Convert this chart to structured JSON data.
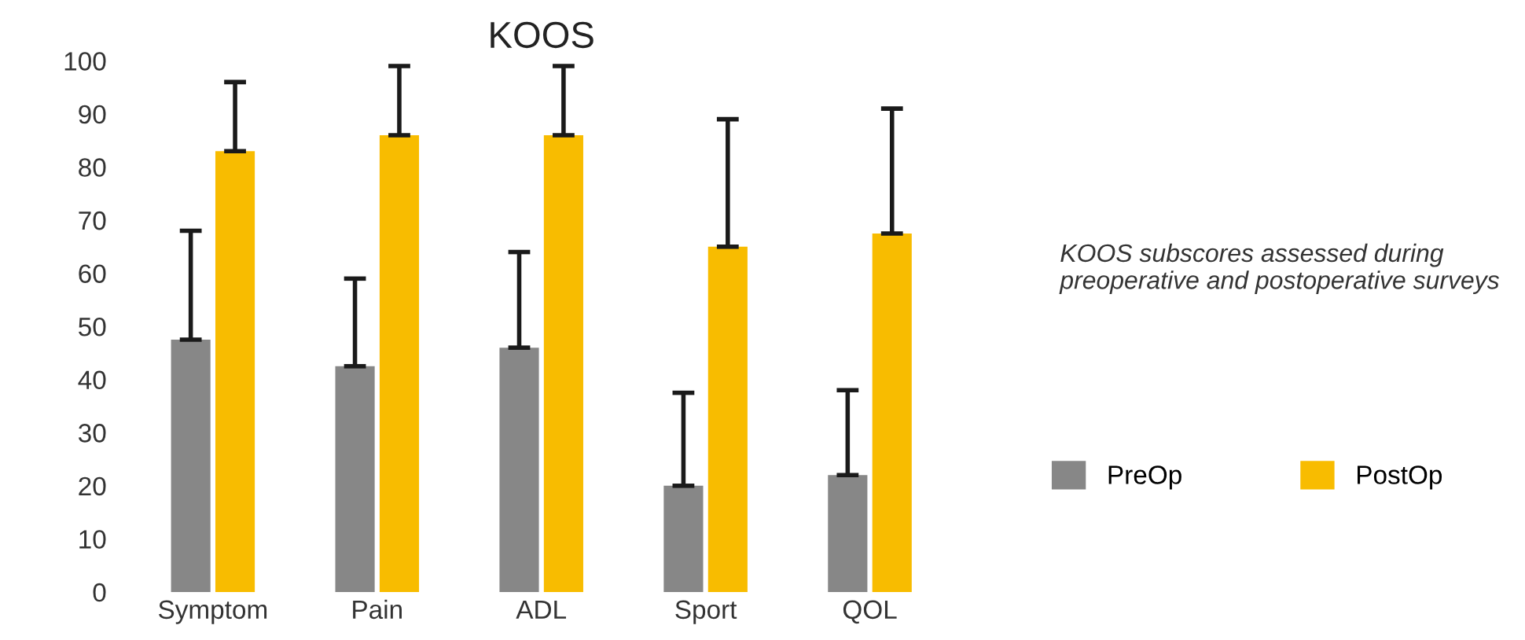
{
  "chart_data": {
    "type": "bar",
    "title": "KOOS",
    "categories": [
      "Symptom",
      "Pain",
      "ADL",
      "Sport",
      "QOL"
    ],
    "series": [
      {
        "name": "PreOp",
        "color": "#878787",
        "values": [
          47.5,
          42.5,
          46,
          20,
          22
        ],
        "errors": [
          [
            47.5,
            68
          ],
          [
            42.5,
            59
          ],
          [
            46,
            64
          ],
          [
            20,
            37.5
          ],
          [
            22,
            38
          ]
        ]
      },
      {
        "name": "PostOp",
        "color": "#f8bc00",
        "values": [
          83,
          86,
          86,
          65,
          67.5
        ],
        "errors": [
          [
            83,
            96
          ],
          [
            86,
            99
          ],
          [
            86,
            99
          ],
          [
            65,
            89
          ],
          [
            67.5,
            91
          ]
        ]
      }
    ],
    "ylim": [
      0,
      100
    ],
    "yticks": [
      0,
      10,
      20,
      30,
      40,
      50,
      60,
      70,
      80,
      90,
      100
    ],
    "grid": false,
    "legend": "right",
    "annotations": [
      "KOOS subscores assessed during preoperative and postoperative surveys"
    ]
  }
}
